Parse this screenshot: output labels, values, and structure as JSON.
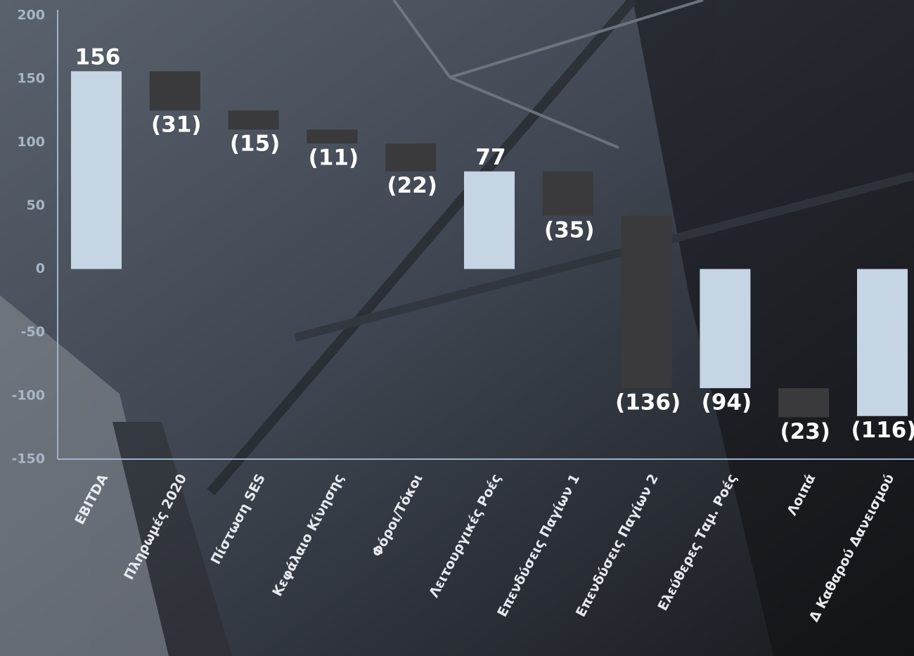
{
  "chart_data": {
    "type": "waterfall",
    "categories": [
      "EBITDA",
      "Πληρωμές 2020",
      "Πίστωση SES",
      "Κεφάλαιο Κίνησης",
      "Φόροι/Τόκοι",
      "Λειτουργικές Ροές",
      "Επενδύσεις Παγίων 1",
      "Επενδύσεις Παγίων 2",
      "Ελεύθερες Ταμ. Ροές",
      "Λοιπά",
      "Δ Καθαρού Δανεισμού"
    ],
    "values": [
      156,
      -31,
      -15,
      -11,
      -22,
      77,
      -35,
      -136,
      -94,
      -23,
      -116
    ],
    "value_labels": [
      "156",
      "(31)",
      "(15)",
      "(11)",
      "(22)",
      "77",
      "(35)",
      "(136)",
      "(94)",
      "(23)",
      "(116)"
    ],
    "colors": [
      "#c5d5e4",
      "#3a3a3c",
      "#3a3a3c",
      "#3a3a3c",
      "#3a3a3c",
      "#c5d5e4",
      "#3a3a3c",
      "#3a3a3c",
      "#c5d5e4",
      "#3a3a3c",
      "#c5d5e4"
    ],
    "ylim": [
      -150,
      200
    ],
    "yticks": [
      -150,
      -100,
      -50,
      0,
      50,
      100,
      150,
      200
    ]
  }
}
